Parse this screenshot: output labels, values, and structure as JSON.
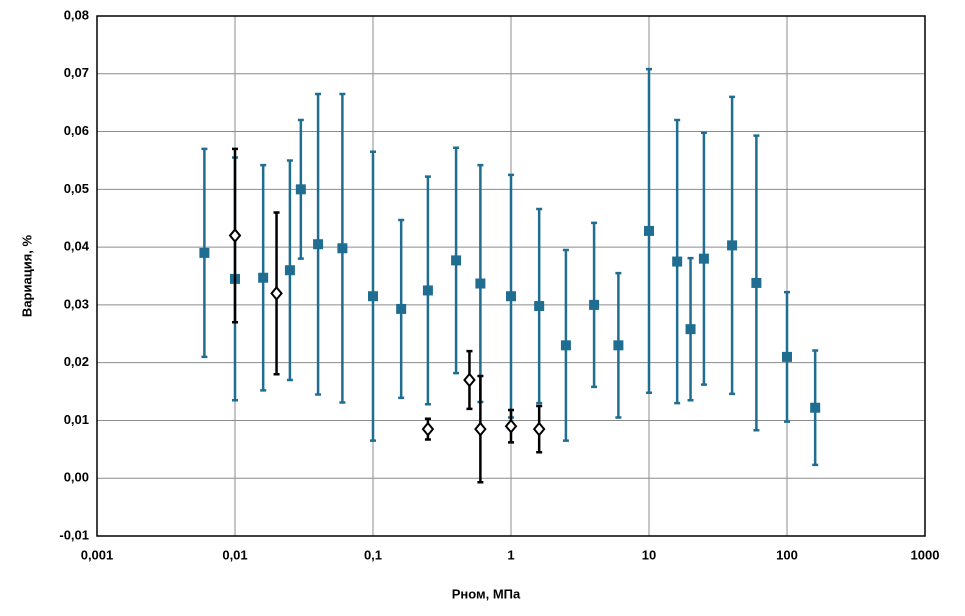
{
  "chart_data": {
    "type": "scatter",
    "xlabel": "Рном, МПа",
    "ylabel": "Вариация, %",
    "xscale": "log",
    "grid": true,
    "xlim": [
      0.001,
      1000
    ],
    "xticks": [
      {
        "value": 0.001,
        "label": "0,001"
      },
      {
        "value": 0.01,
        "label": "0,01"
      },
      {
        "value": 0.1,
        "label": "0,1"
      },
      1,
      10,
      100,
      1000
    ],
    "ylim": [
      -0.01,
      0.08
    ],
    "yticks": [
      {
        "value": -0.01,
        "label": "-0,01"
      },
      {
        "value": 0,
        "label": "0,00"
      },
      {
        "value": 0.01,
        "label": "0,01"
      },
      {
        "value": 0.02,
        "label": "0,02"
      },
      {
        "value": 0.03,
        "label": "0,03"
      },
      {
        "value": 0.04,
        "label": "0,04"
      },
      {
        "value": 0.05,
        "label": "0,05"
      },
      {
        "value": 0.06,
        "label": "0,06"
      },
      {
        "value": 0.07,
        "label": "0,07"
      },
      {
        "value": 0.08,
        "label": "0,08"
      }
    ],
    "series": [
      {
        "color": "#1f6e92",
        "marker": "square",
        "x": [
          0.006,
          0.01,
          0.016,
          0.025,
          0.03,
          0.04,
          0.06,
          0.1,
          0.16,
          0.25,
          0.4,
          0.6,
          1,
          1.6,
          2.5,
          4,
          6,
          10,
          16,
          20,
          25,
          40,
          60,
          100,
          160
        ],
        "values": [
          0.039,
          0.0345,
          0.0347,
          0.036,
          0.05,
          0.0405,
          0.0398,
          0.0315,
          0.0293,
          0.0325,
          0.0377,
          0.0337,
          0.0315,
          0.0298,
          0.023,
          0.03,
          0.023,
          0.0428,
          0.0375,
          0.0258,
          0.038,
          0.0403,
          0.0338,
          0.021,
          0.0122
        ],
        "errors": [
          0.018,
          0.021,
          0.0195,
          0.019,
          0.012,
          0.026,
          0.0267,
          0.025,
          0.0154,
          0.0197,
          0.0195,
          0.0205,
          0.021,
          0.0168,
          0.0165,
          0.0142,
          0.0125,
          0.028,
          0.0245,
          0.0123,
          0.0218,
          0.0257,
          0.0255,
          0.0112,
          0.0099
        ]
      },
      {
        "color": "#000000",
        "marker": "diamond",
        "x": [
          0.01,
          0.02,
          0.25,
          0.5,
          0.6,
          1,
          1.6
        ],
        "values": [
          0.042,
          0.032,
          0.0085,
          0.017,
          0.0085,
          0.009,
          0.0085
        ],
        "errors": [
          0.015,
          0.014,
          0.0018,
          0.005,
          0.0092,
          0.0028,
          0.004
        ]
      }
    ]
  }
}
